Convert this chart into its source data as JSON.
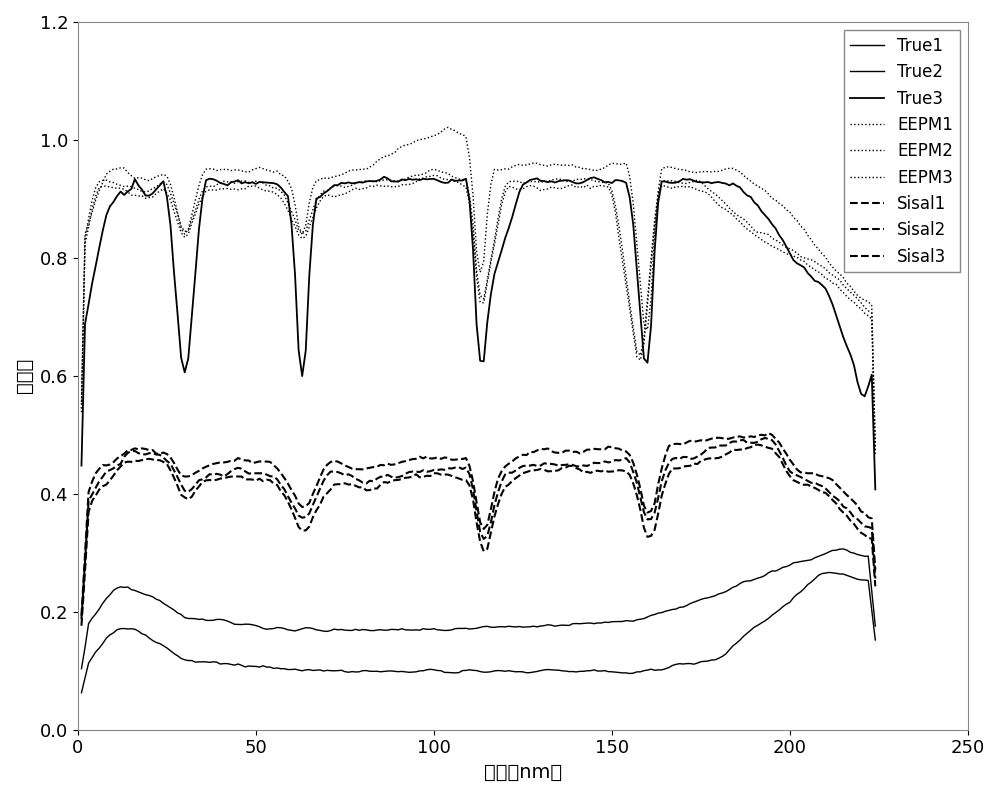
{
  "xlabel": "波长（nm）",
  "ylabel": "反射率",
  "xlim": [
    0,
    250
  ],
  "ylim": [
    0,
    1.2
  ],
  "xticks": [
    0,
    50,
    100,
    150,
    200,
    250
  ],
  "yticks": [
    0,
    0.2,
    0.4,
    0.6,
    0.8,
    1.0,
    1.2
  ],
  "legend_labels": [
    "True1",
    "True2",
    "True3",
    "EEPM1",
    "EEPM2",
    "EEPM3",
    "Sisal1",
    "Sisal2",
    "Sisal3"
  ],
  "background_color": "#ffffff",
  "n_points": 224,
  "xlabel_fontsize": 14,
  "ylabel_fontsize": 14,
  "tick_fontsize": 13,
  "legend_fontsize": 12
}
